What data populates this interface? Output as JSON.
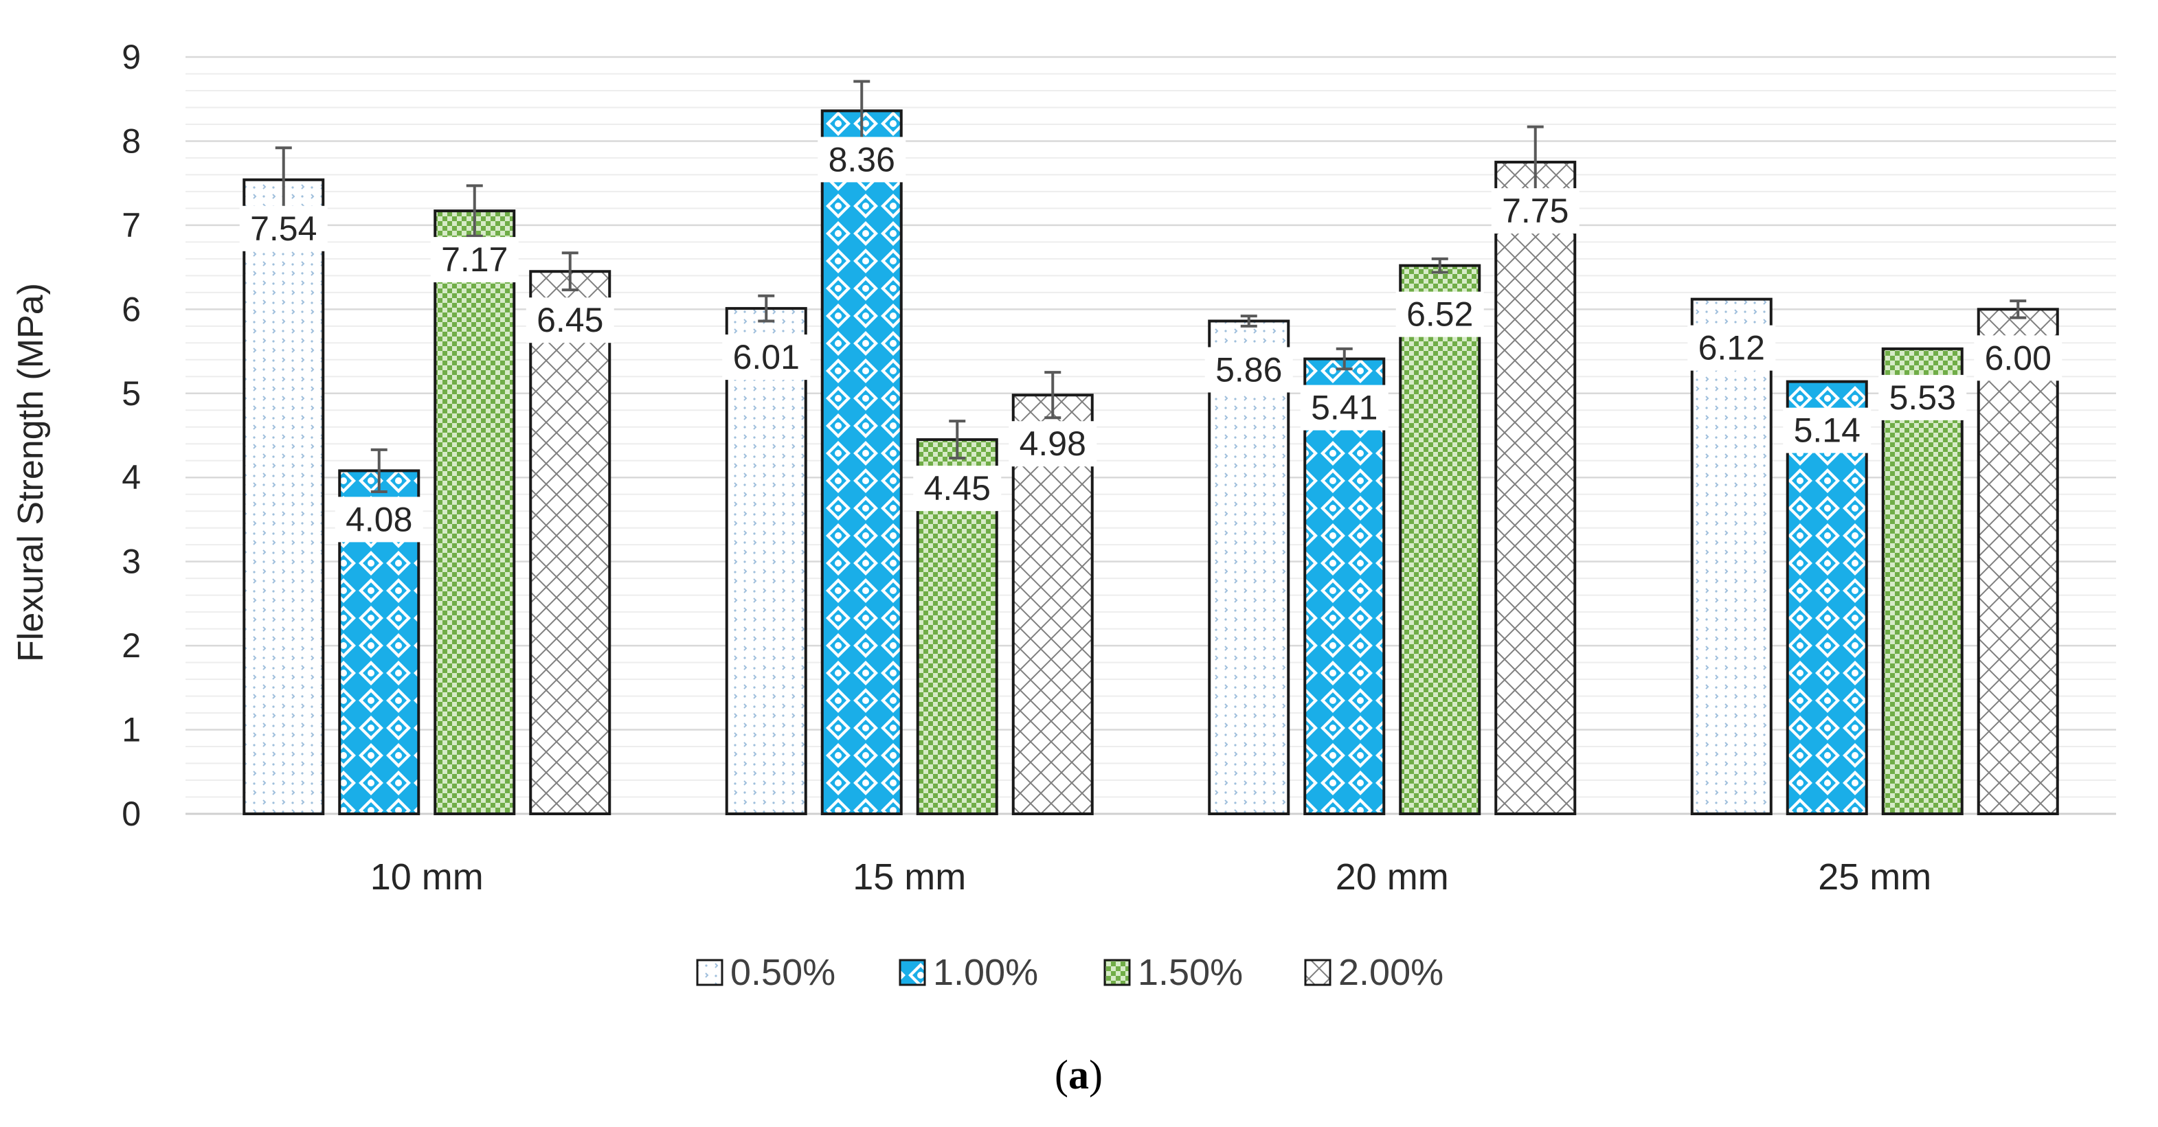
{
  "chart_data": {
    "type": "bar",
    "title": "",
    "xlabel": "",
    "ylabel": "Flexural Strength (MPa)",
    "ylim": [
      0,
      9
    ],
    "yticks": [
      0,
      1,
      2,
      3,
      4,
      5,
      6,
      7,
      8,
      9
    ],
    "minor_grid_step": 0.2,
    "categories": [
      "10 mm",
      "15 mm",
      "20 mm",
      "25 mm"
    ],
    "series": [
      {
        "name": "0.50%",
        "values": [
          7.54,
          6.01,
          5.86,
          6.12
        ],
        "errors": [
          0.38,
          0.15,
          0.06,
          0.0
        ],
        "labels": [
          "7.54",
          "6.01",
          "5.86",
          "6.12"
        ],
        "color": "#9fbfdc",
        "pattern": "light-dots"
      },
      {
        "name": "1.00%",
        "values": [
          4.08,
          8.36,
          5.41,
          5.14
        ],
        "errors": [
          0.25,
          0.35,
          0.12,
          0.0
        ],
        "labels": [
          "4.08",
          "8.36",
          "5.41",
          "5.14"
        ],
        "color": "#1aaee8",
        "pattern": "diamond-lattice"
      },
      {
        "name": "1.50%",
        "values": [
          7.17,
          4.45,
          6.52,
          5.53
        ],
        "errors": [
          0.3,
          0.22,
          0.08,
          0.0
        ],
        "labels": [
          "7.17",
          "4.45",
          "6.52",
          "5.53"
        ],
        "color": "#70ad47",
        "pattern": "checker"
      },
      {
        "name": "2.00%",
        "values": [
          6.45,
          4.98,
          7.75,
          6.0
        ],
        "errors": [
          0.22,
          0.27,
          0.42,
          0.1
        ],
        "labels": [
          "6.45",
          "4.98",
          "7.75",
          "6.00"
        ],
        "color": "#7f7f7f",
        "pattern": "crosshatch"
      }
    ],
    "legend_position": "bottom-center",
    "grid": true
  },
  "caption": {
    "open": "(",
    "letter": "a",
    "close": ")"
  },
  "colors": {
    "axis": "#d0d0d0",
    "major_grid": "#d9d9d9",
    "minor_grid": "#ededed",
    "bar_outline": "#1a1a1a",
    "error_bar": "#595959"
  }
}
